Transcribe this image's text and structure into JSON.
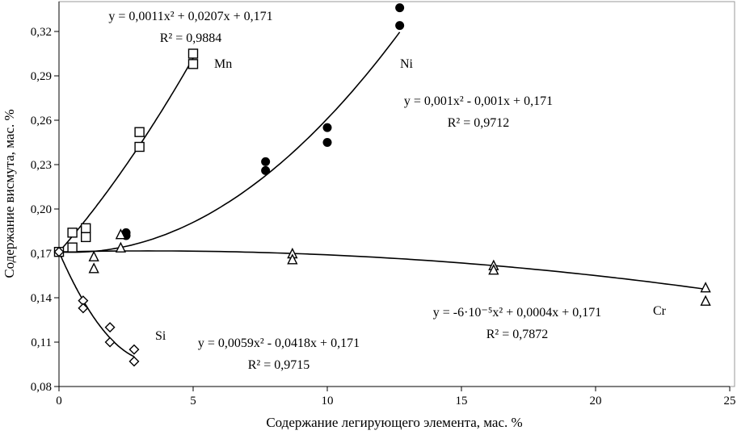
{
  "chart_data": {
    "type": "scatter",
    "title": "",
    "xlabel": "Содержание легирующего элемента, мас. %",
    "ylabel": "Содержание висмута, мас. %",
    "xlim": [
      0,
      25
    ],
    "ylim": [
      0.08,
      0.335
    ],
    "xticks": [
      0,
      5,
      10,
      15,
      20,
      25
    ],
    "xtick_labels": [
      "0",
      "5",
      "10",
      "15",
      "20",
      "25"
    ],
    "yticks": [
      0.08,
      0.11,
      0.14,
      0.17,
      0.2,
      0.23,
      0.26,
      0.29,
      0.32
    ],
    "ytick_labels": [
      "0,08",
      "0,11",
      "0,14",
      "0,17",
      "0,20",
      "0,23",
      "0,26",
      "0,29",
      "0,32"
    ],
    "grid": false,
    "series": [
      {
        "name": "Mn",
        "marker": "square",
        "fit": [
          0.0011,
          0.0207,
          0.171
        ],
        "fit_range": [
          0,
          5
        ],
        "equation": "y = 0,0011x² + 0,0207x + 0,171",
        "r2": "R² = 0,9884",
        "points": [
          [
            0,
            0.171
          ],
          [
            0.5,
            0.184
          ],
          [
            0.5,
            0.174
          ],
          [
            1.0,
            0.187
          ],
          [
            1.0,
            0.181
          ],
          [
            3.0,
            0.252
          ],
          [
            3.0,
            0.242
          ],
          [
            5.0,
            0.305
          ],
          [
            5.0,
            0.298
          ]
        ]
      },
      {
        "name": "Ni",
        "marker": "circle",
        "fit": [
          0.001,
          -0.001,
          0.171
        ],
        "fit_range": [
          0,
          12.7
        ],
        "equation": "y = 0,001x² - 0,001x + 0,171",
        "r2": "R² = 0,9712",
        "points": [
          [
            2.5,
            0.184
          ],
          [
            2.5,
            0.182
          ],
          [
            7.7,
            0.232
          ],
          [
            7.7,
            0.226
          ],
          [
            10.0,
            0.255
          ],
          [
            10.0,
            0.245
          ],
          [
            12.7,
            0.336
          ],
          [
            12.7,
            0.324
          ]
        ]
      },
      {
        "name": "Cr",
        "marker": "triangle",
        "fit": [
          -6e-05,
          0.0004,
          0.171
        ],
        "fit_range": [
          0,
          24.1
        ],
        "equation": "y = -6·10⁻⁵x² + 0,0004x + 0,171",
        "r2": "R² = 0,7872",
        "points": [
          [
            1.3,
            0.168
          ],
          [
            1.3,
            0.16
          ],
          [
            2.3,
            0.183
          ],
          [
            2.3,
            0.174
          ],
          [
            8.7,
            0.17
          ],
          [
            8.7,
            0.166
          ],
          [
            16.2,
            0.162
          ],
          [
            16.2,
            0.159
          ],
          [
            24.1,
            0.147
          ],
          [
            24.1,
            0.138
          ]
        ]
      },
      {
        "name": "Si",
        "marker": "diamond",
        "fit": [
          0.0059,
          -0.0418,
          0.171
        ],
        "fit_range": [
          0,
          2.8
        ],
        "equation": "y = 0,0059x² - 0,0418x + 0,171",
        "r2": "R² = 0,9715",
        "points": [
          [
            0,
            0.171
          ],
          [
            0.9,
            0.138
          ],
          [
            0.9,
            0.133
          ],
          [
            1.9,
            0.12
          ],
          [
            1.9,
            0.11
          ],
          [
            2.8,
            0.105
          ],
          [
            2.8,
            0.097
          ]
        ]
      }
    ]
  }
}
